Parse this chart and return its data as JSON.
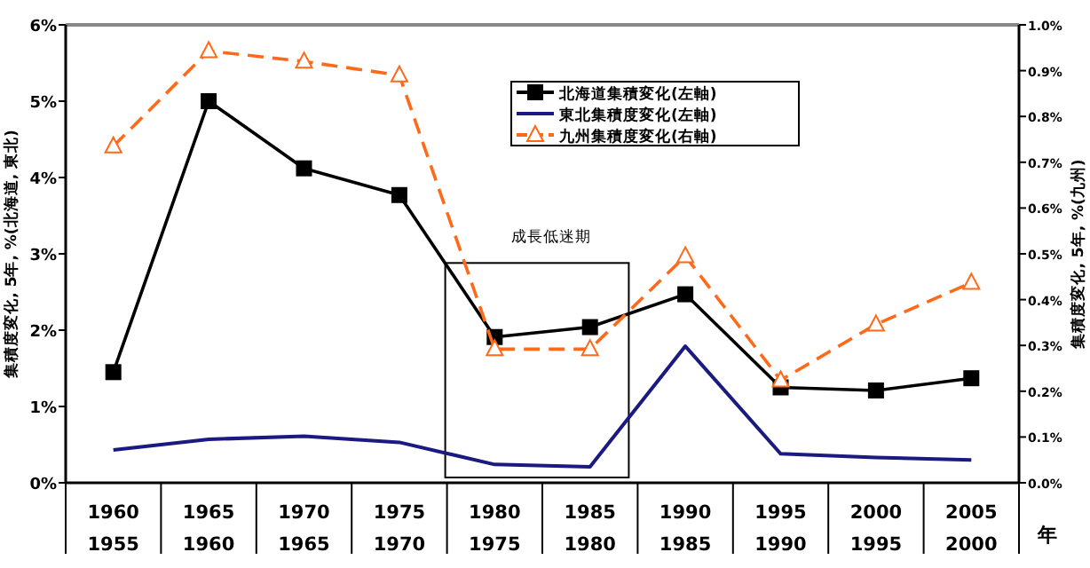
{
  "chart_data": {
    "type": "line",
    "categories": [
      "1960\n1955",
      "1965\n1960",
      "1970\n1965",
      "1975\n1970",
      "1980\n1975",
      "1985\n1980",
      "1990\n1985",
      "1995\n1990",
      "2000\n1995",
      "2005\n2000"
    ],
    "xlabel": "年",
    "ylabel": "集積度変化, 5年, %(北海道, 東北)",
    "y2label": "集積度変化, 5年, %(九州)",
    "series": [
      {
        "name": "北海道集積変化(左軸)",
        "color": "#000000",
        "marker": "square",
        "line_style": "solid",
        "values": [
          1.45,
          5.0,
          4.12,
          3.77,
          1.91,
          2.04,
          2.47,
          1.25,
          1.21,
          1.37
        ]
      },
      {
        "name": "東北集積度変化(左軸)",
        "color": "#1a1a80",
        "marker": "none",
        "line_style": "solid",
        "values": [
          0.43,
          0.57,
          0.61,
          0.53,
          0.24,
          0.21,
          1.79,
          0.38,
          0.33,
          0.3
        ]
      },
      {
        "name": "九州集積度変化(右軸)",
        "color": "#ff6a1a",
        "marker": "triangle",
        "line_style": "dashed",
        "axis": "y2",
        "values": [
          0.735,
          0.943,
          0.92,
          0.89,
          0.292,
          0.292,
          0.495,
          0.224,
          0.346,
          0.437
        ]
      }
    ],
    "ylim": [
      0,
      6
    ],
    "yticks": [
      {
        "value": 0,
        "label": "0%"
      },
      {
        "value": 1,
        "label": "1%"
      },
      {
        "value": 2,
        "label": "2%"
      },
      {
        "value": 3,
        "label": "3%"
      },
      {
        "value": 4,
        "label": "4%"
      },
      {
        "value": 5,
        "label": "5%"
      },
      {
        "value": 6,
        "label": "6%"
      }
    ],
    "y2lim": [
      0,
      1
    ],
    "y2ticks": [
      {
        "value": 0,
        "label": "0.0%"
      },
      {
        "value": 0.1,
        "label": "0.1%"
      },
      {
        "value": 0.2,
        "label": "0.2%"
      },
      {
        "value": 0.3,
        "label": "0.3%"
      },
      {
        "value": 0.4,
        "label": "0.4%"
      },
      {
        "value": 0.5,
        "label": "0.5%"
      },
      {
        "value": 0.6,
        "label": "0.6%"
      },
      {
        "value": 0.7,
        "label": "0.7%"
      },
      {
        "value": 0.8,
        "label": "0.8%"
      },
      {
        "value": 0.9,
        "label": "0.9%"
      },
      {
        "value": 1,
        "label": "1.0%"
      }
    ],
    "annotations": [
      "成長低迷期"
    ],
    "grid": false,
    "legend": "top right"
  }
}
